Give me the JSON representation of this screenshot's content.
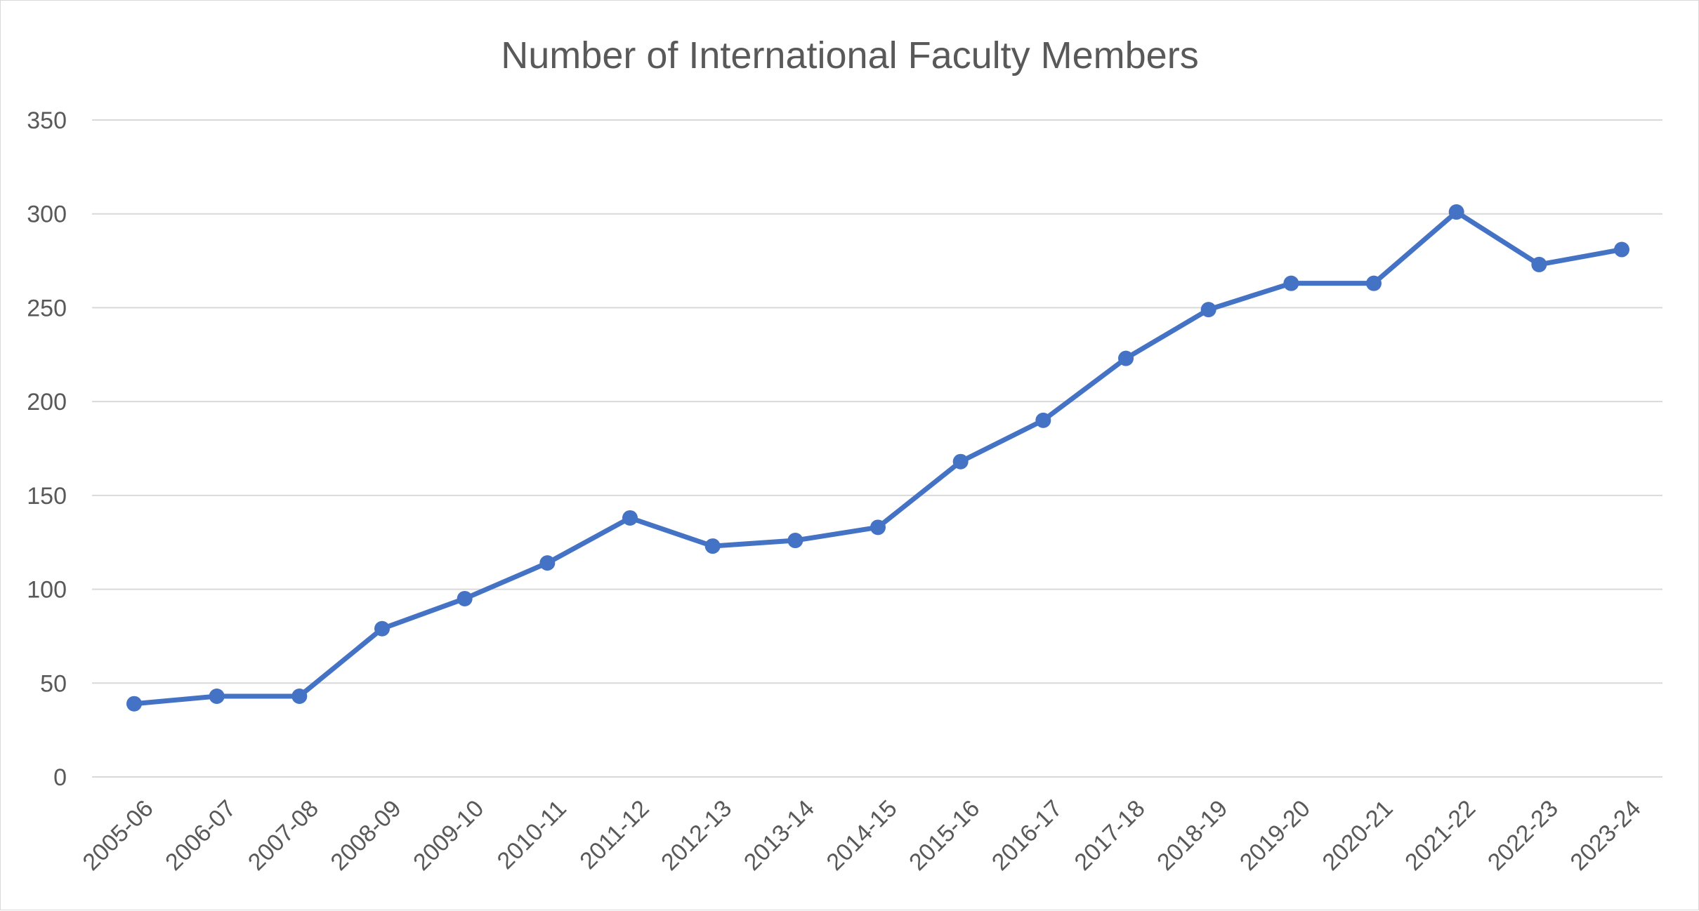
{
  "chart_data": {
    "type": "line",
    "title": "Number of International Faculty Members",
    "xlabel": "",
    "ylabel": "",
    "categories": [
      "2005-06",
      "2006-07",
      "2007-08",
      "2008-09",
      "2009-10",
      "2010-11",
      "2011-12",
      "2012-13",
      "2013-14",
      "2014-15",
      "2015-16",
      "2016-17",
      "2017-18",
      "2018-19",
      "2019-20",
      "2020-21",
      "2021-22",
      "2022-23",
      "2023-24"
    ],
    "series": [
      {
        "values": [
          39,
          43,
          43,
          79,
          95,
          114,
          138,
          123,
          126,
          133,
          168,
          190,
          223,
          249,
          263,
          263,
          301,
          273,
          281
        ],
        "color": "#4472C4"
      }
    ],
    "ylim": [
      0,
      350
    ],
    "yticks": [
      0,
      50,
      100,
      150,
      200,
      250,
      300,
      350
    ],
    "grid": true,
    "legend": "none"
  }
}
